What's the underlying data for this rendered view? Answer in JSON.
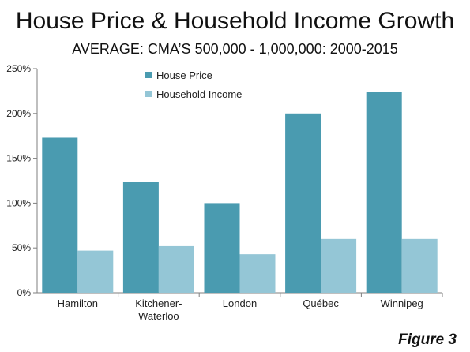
{
  "title": "House Price & Household Income Growth",
  "subtitle": "AVERAGE: CMA’S 500,000 - 1,000,000: 2000-2015",
  "footnote": "Figure 3",
  "colors": {
    "house_price": "#4A9BB0",
    "household_income": "#94C6D6",
    "axis": "#7F7F7F"
  },
  "chart_data": {
    "type": "bar",
    "categories": [
      [
        "Hamilton"
      ],
      [
        "Kitchener-",
        "Waterloo"
      ],
      [
        "London"
      ],
      [
        "Québec"
      ],
      [
        "Winnipeg"
      ]
    ],
    "series": [
      {
        "name": "House Price",
        "values": [
          173,
          124,
          100,
          200,
          224
        ]
      },
      {
        "name": "Household Income",
        "values": [
          47,
          52,
          43,
          60,
          60
        ]
      }
    ],
    "ylim": [
      0,
      250
    ],
    "yticks": [
      0,
      50,
      100,
      150,
      200,
      250
    ],
    "ytick_labels": [
      "0%",
      "50%",
      "100%",
      "150%",
      "200%",
      "250%"
    ],
    "grid": false,
    "legend_position": "top-center"
  }
}
